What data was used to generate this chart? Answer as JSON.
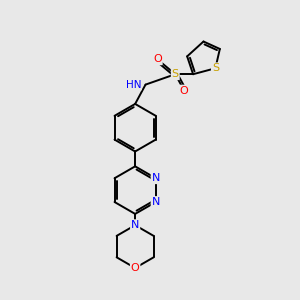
{
  "background_color": "#e8e8e8",
  "atom_colors": {
    "C": "#000000",
    "N": "#0000ff",
    "O": "#ff0000",
    "S": "#c8a000",
    "H": "#708090"
  },
  "figsize": [
    3.0,
    3.0
  ],
  "dpi": 100,
  "lw": 1.4,
  "fontsize": 7.5
}
